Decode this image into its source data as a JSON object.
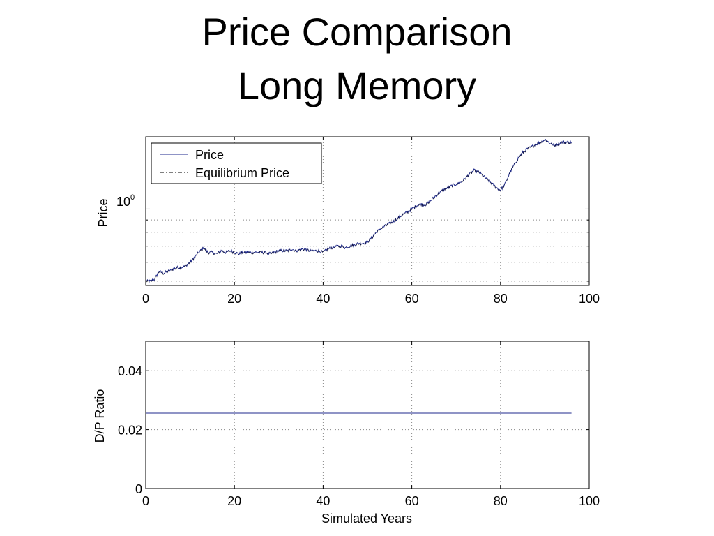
{
  "slide": {
    "title_line1": "Price Comparison",
    "title_line2": "Long Memory"
  },
  "chart_data": [
    {
      "type": "line",
      "ylabel": "Price",
      "xlabel": "",
      "y_scale": "log",
      "xlim": [
        0,
        100
      ],
      "x_ticks": [
        "0",
        "20",
        "40",
        "60",
        "80",
        "100"
      ],
      "y_tick_label": {
        "base": "10",
        "exponent": "0"
      },
      "grid": true,
      "legend_position": "top-left",
      "legend": [
        {
          "name": "Price",
          "style": "solid",
          "color": "#1f2a8c"
        },
        {
          "name": "Equilibrium Price",
          "style": "dash-dot",
          "color": "#000000"
        }
      ],
      "series": [
        {
          "name": "Price",
          "color": "#1f2a8c",
          "x": [
            0,
            1,
            2,
            3,
            4,
            5,
            6,
            7,
            8,
            9,
            10,
            11,
            12,
            13,
            14,
            15,
            16,
            17,
            18,
            19,
            20,
            21,
            22,
            23,
            24,
            25,
            26,
            27,
            28,
            29,
            30,
            31,
            32,
            33,
            34,
            35,
            36,
            37,
            38,
            39,
            40,
            41,
            42,
            43,
            44,
            45,
            46,
            47,
            48,
            49,
            50,
            51,
            52,
            53,
            54,
            55,
            56,
            57,
            58,
            59,
            60,
            61,
            62,
            63,
            64,
            65,
            66,
            67,
            68,
            69,
            70,
            71,
            72,
            73,
            74,
            75,
            76,
            77,
            78,
            79,
            80,
            81,
            82,
            83,
            84,
            85,
            86,
            87,
            88,
            89,
            90,
            91,
            92,
            93,
            94,
            95,
            96
          ],
          "y": [
            0.5,
            0.5,
            0.51,
            0.55,
            0.54,
            0.55,
            0.56,
            0.57,
            0.57,
            0.58,
            0.6,
            0.63,
            0.66,
            0.69,
            0.66,
            0.66,
            0.65,
            0.67,
            0.66,
            0.67,
            0.66,
            0.65,
            0.66,
            0.66,
            0.66,
            0.66,
            0.66,
            0.66,
            0.65,
            0.66,
            0.67,
            0.67,
            0.67,
            0.68,
            0.67,
            0.68,
            0.68,
            0.67,
            0.67,
            0.67,
            0.66,
            0.68,
            0.69,
            0.7,
            0.7,
            0.69,
            0.7,
            0.71,
            0.72,
            0.72,
            0.73,
            0.76,
            0.8,
            0.83,
            0.85,
            0.87,
            0.89,
            0.92,
            0.95,
            0.97,
            1.0,
            1.03,
            1.05,
            1.04,
            1.07,
            1.12,
            1.16,
            1.2,
            1.22,
            1.25,
            1.27,
            1.29,
            1.34,
            1.4,
            1.45,
            1.43,
            1.38,
            1.33,
            1.28,
            1.23,
            1.2,
            1.27,
            1.4,
            1.52,
            1.63,
            1.72,
            1.78,
            1.82,
            1.86,
            1.9,
            1.95,
            1.89,
            1.84,
            1.87,
            1.9,
            1.9,
            1.9
          ]
        },
        {
          "name": "Equilibrium Price",
          "color": "#000000",
          "x": [],
          "y": []
        }
      ]
    },
    {
      "type": "line",
      "ylabel": "D/P Ratio",
      "xlabel": "Simulated Years",
      "xlim": [
        0,
        100
      ],
      "ylim": [
        0,
        0.05
      ],
      "x_ticks": [
        "0",
        "20",
        "40",
        "60",
        "80",
        "100"
      ],
      "y_ticks": [
        "0",
        "0.02",
        "0.04"
      ],
      "grid": true,
      "series": [
        {
          "color": "#1f2a8c",
          "x": [
            0,
            96
          ],
          "y": [
            0.0256,
            0.0256
          ]
        }
      ]
    }
  ]
}
